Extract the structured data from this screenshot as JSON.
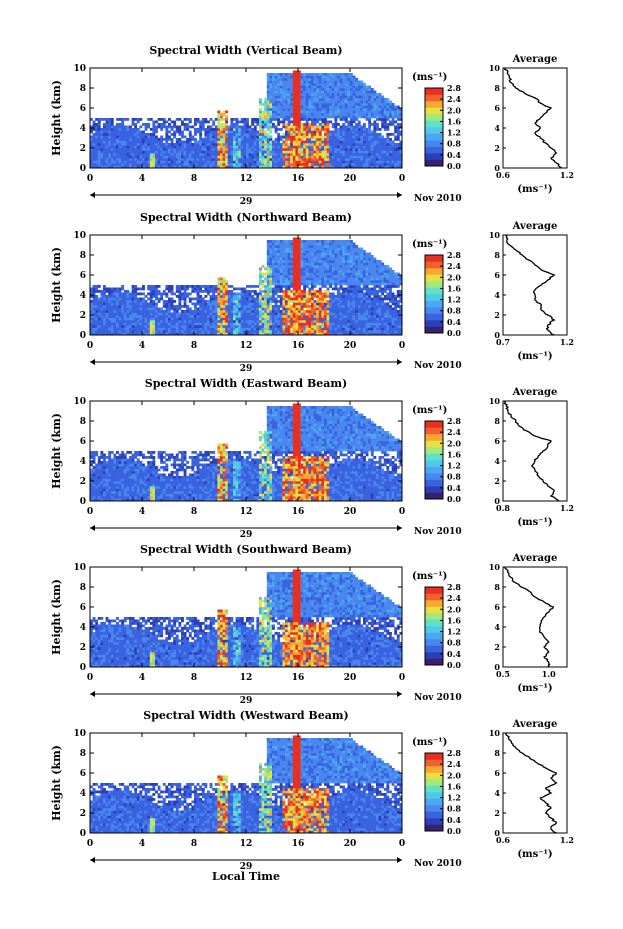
{
  "x_label": "Local Time",
  "month_label": "Nov 2010",
  "colors": {
    "cmap": [
      "#3a1f6e",
      "#2a3fb8",
      "#3a63e0",
      "#4a86f0",
      "#4aa8f0",
      "#50c8e8",
      "#60e0c8",
      "#a0e880",
      "#e8e040",
      "#f8a830",
      "#f06030",
      "#e83020"
    ],
    "noise": "#5a6fe0"
  },
  "chart_data": [
    {
      "type": "heatmap",
      "title": "Spectral Width (Vertical Beam)",
      "ylabel": "Height (km)",
      "unit_label": "(ms⁻¹)",
      "x_ticks": [
        "0",
        "4",
        "8",
        "12",
        "16",
        "20",
        "0"
      ],
      "day_label": "29",
      "y_ticks": [
        "0",
        "2",
        "4",
        "6",
        "8",
        "10"
      ],
      "xlim": [
        0,
        24
      ],
      "ylim": [
        0,
        10
      ],
      "colorbar": {
        "ticks": [
          "0.0",
          "0.4",
          "0.8",
          "1.2",
          "1.6",
          "2.0",
          "2.4",
          "2.8"
        ],
        "range": [
          0,
          2.8
        ]
      },
      "profile": {
        "title": "Average",
        "xlabel": "(ms⁻¹)",
        "x_ticks": [
          "0.6",
          "1.2"
        ],
        "xlim": [
          0.6,
          1.2
        ],
        "y_ticks": [
          "0",
          "2",
          "4",
          "6",
          "8",
          "10"
        ],
        "values": [
          [
            1.15,
            0
          ],
          [
            1.1,
            0.5
          ],
          [
            1.05,
            1
          ],
          [
            1.1,
            1.5
          ],
          [
            1.05,
            2
          ],
          [
            1.0,
            2.5
          ],
          [
            0.95,
            3
          ],
          [
            0.9,
            3.5
          ],
          [
            0.95,
            4
          ],
          [
            0.9,
            4.5
          ],
          [
            0.95,
            5
          ],
          [
            1.0,
            5.5
          ],
          [
            1.05,
            6
          ],
          [
            0.95,
            6.5
          ],
          [
            0.9,
            7
          ],
          [
            0.8,
            7.5
          ],
          [
            0.72,
            8
          ],
          [
            0.68,
            8.5
          ],
          [
            0.66,
            9
          ],
          [
            0.64,
            9.5
          ],
          [
            0.62,
            10
          ]
        ]
      }
    },
    {
      "type": "heatmap",
      "title": "Spectral Width (Northward Beam)",
      "ylabel": "Height (km)",
      "unit_label": "(ms⁻¹)",
      "x_ticks": [
        "0",
        "4",
        "8",
        "12",
        "16",
        "20",
        "0"
      ],
      "day_label": "29",
      "y_ticks": [
        "0",
        "2",
        "4",
        "6",
        "8",
        "10"
      ],
      "xlim": [
        0,
        24
      ],
      "ylim": [
        0,
        10
      ],
      "colorbar": {
        "ticks": [
          "0.0",
          "0.4",
          "0.8",
          "1.2",
          "1.6",
          "2.0",
          "2.4",
          "2.8"
        ],
        "range": [
          0,
          2.8
        ]
      },
      "profile": {
        "title": "Average",
        "xlabel": "(ms⁻¹)",
        "x_ticks": [
          "0.7",
          "1.2"
        ],
        "xlim": [
          0.7,
          1.2
        ],
        "y_ticks": [
          "0",
          "2",
          "4",
          "6",
          "8",
          "10"
        ],
        "values": [
          [
            1.1,
            0
          ],
          [
            1.05,
            0.5
          ],
          [
            1.05,
            1
          ],
          [
            1.1,
            1.5
          ],
          [
            1.05,
            2
          ],
          [
            1.0,
            2.5
          ],
          [
            1.0,
            3
          ],
          [
            0.95,
            3.5
          ],
          [
            0.95,
            4
          ],
          [
            0.95,
            4.5
          ],
          [
            1.0,
            5
          ],
          [
            1.05,
            5.5
          ],
          [
            1.1,
            6
          ],
          [
            1.0,
            6.5
          ],
          [
            0.95,
            7
          ],
          [
            0.9,
            7.5
          ],
          [
            0.85,
            8
          ],
          [
            0.8,
            8.5
          ],
          [
            0.75,
            9
          ],
          [
            0.73,
            9.5
          ],
          [
            0.72,
            10
          ]
        ]
      }
    },
    {
      "type": "heatmap",
      "title": "Spectral Width (Eastward Beam)",
      "ylabel": "Height (km)",
      "unit_label": "(ms⁻¹)",
      "x_ticks": [
        "0",
        "4",
        "8",
        "12",
        "16",
        "20",
        "0"
      ],
      "day_label": "29",
      "y_ticks": [
        "0",
        "2",
        "4",
        "6",
        "8",
        "10"
      ],
      "xlim": [
        0,
        24
      ],
      "ylim": [
        0,
        10
      ],
      "colorbar": {
        "ticks": [
          "0.0",
          "0.4",
          "0.8",
          "1.2",
          "1.6",
          "2.0",
          "2.4",
          "2.8"
        ],
        "range": [
          0,
          2.8
        ]
      },
      "profile": {
        "title": "Average",
        "xlabel": "(ms⁻¹)",
        "x_ticks": [
          "0.8",
          "1.2"
        ],
        "xlim": [
          0.8,
          1.2
        ],
        "y_ticks": [
          "0",
          "2",
          "4",
          "6",
          "8",
          "10"
        ],
        "values": [
          [
            1.15,
            0
          ],
          [
            1.1,
            0.5
          ],
          [
            1.12,
            1
          ],
          [
            1.08,
            1.5
          ],
          [
            1.05,
            2
          ],
          [
            1.02,
            2.5
          ],
          [
            1.0,
            3
          ],
          [
            0.98,
            3.5
          ],
          [
            1.0,
            4
          ],
          [
            1.02,
            4.5
          ],
          [
            1.05,
            5
          ],
          [
            1.08,
            5.5
          ],
          [
            1.1,
            6
          ],
          [
            1.0,
            6.5
          ],
          [
            0.95,
            7
          ],
          [
            0.9,
            7.5
          ],
          [
            0.88,
            8
          ],
          [
            0.85,
            8.5
          ],
          [
            0.83,
            9
          ],
          [
            0.82,
            9.5
          ],
          [
            0.81,
            10
          ]
        ]
      }
    },
    {
      "type": "heatmap",
      "title": "Spectral Width (Southward Beam)",
      "ylabel": "Height (km)",
      "unit_label": "(ms⁻¹)",
      "x_ticks": [
        "0",
        "4",
        "8",
        "12",
        "16",
        "20",
        "0"
      ],
      "day_label": "29",
      "y_ticks": [
        "0",
        "2",
        "4",
        "6",
        "8",
        "10"
      ],
      "xlim": [
        0,
        24
      ],
      "ylim": [
        0,
        10
      ],
      "colorbar": {
        "ticks": [
          "0.0",
          "0.4",
          "0.8",
          "1.2",
          "1.6",
          "2.0",
          "2.4",
          "2.8"
        ],
        "range": [
          0,
          2.8
        ]
      },
      "profile": {
        "title": "Average",
        "xlabel": "(ms⁻¹)",
        "x_ticks": [
          "0.5",
          "1.0"
        ],
        "xlim": [
          0.5,
          1.2
        ],
        "y_ticks": [
          "0",
          "2",
          "4",
          "6",
          "8",
          "10"
        ],
        "values": [
          [
            1.0,
            0
          ],
          [
            1.0,
            0.5
          ],
          [
            0.95,
            1
          ],
          [
            1.0,
            1.5
          ],
          [
            0.95,
            2
          ],
          [
            1.0,
            2.5
          ],
          [
            0.95,
            3
          ],
          [
            0.9,
            3.5
          ],
          [
            0.9,
            4
          ],
          [
            0.92,
            4.5
          ],
          [
            0.95,
            5
          ],
          [
            1.0,
            5.5
          ],
          [
            1.05,
            6
          ],
          [
            0.95,
            6.5
          ],
          [
            0.85,
            7
          ],
          [
            0.8,
            7.5
          ],
          [
            0.7,
            8
          ],
          [
            0.62,
            8.5
          ],
          [
            0.58,
            9
          ],
          [
            0.55,
            9.5
          ],
          [
            0.52,
            10
          ]
        ]
      }
    },
    {
      "type": "heatmap",
      "title": "Spectral Width (Westward Beam)",
      "ylabel": "Height (km)",
      "unit_label": "(ms⁻¹)",
      "x_ticks": [
        "0",
        "4",
        "8",
        "12",
        "16",
        "20",
        "0"
      ],
      "day_label": "29",
      "y_ticks": [
        "0",
        "2",
        "4",
        "6",
        "8",
        "10"
      ],
      "xlim": [
        0,
        24
      ],
      "ylim": [
        0,
        10
      ],
      "colorbar": {
        "ticks": [
          "0.0",
          "0.4",
          "0.8",
          "1.2",
          "1.6",
          "2.0",
          "2.4",
          "2.8"
        ],
        "range": [
          0,
          2.8
        ]
      },
      "profile": {
        "title": "Average",
        "xlabel": "(ms⁻¹)",
        "x_ticks": [
          "0.6",
          "1.2"
        ],
        "xlim": [
          0.6,
          1.2
        ],
        "y_ticks": [
          "0",
          "2",
          "4",
          "6",
          "8",
          "10"
        ],
        "values": [
          [
            1.1,
            0
          ],
          [
            1.05,
            0.5
          ],
          [
            1.1,
            1
          ],
          [
            1.05,
            1.5
          ],
          [
            1.0,
            2
          ],
          [
            1.05,
            2.5
          ],
          [
            1.0,
            3
          ],
          [
            0.95,
            3.5
          ],
          [
            1.05,
            4
          ],
          [
            1.0,
            4.5
          ],
          [
            1.1,
            5
          ],
          [
            1.05,
            5.5
          ],
          [
            1.1,
            6
          ],
          [
            1.0,
            6.5
          ],
          [
            0.92,
            7
          ],
          [
            0.85,
            7.5
          ],
          [
            0.78,
            8
          ],
          [
            0.72,
            8.5
          ],
          [
            0.68,
            9
          ],
          [
            0.65,
            9.5
          ],
          [
            0.63,
            10
          ]
        ]
      }
    }
  ]
}
